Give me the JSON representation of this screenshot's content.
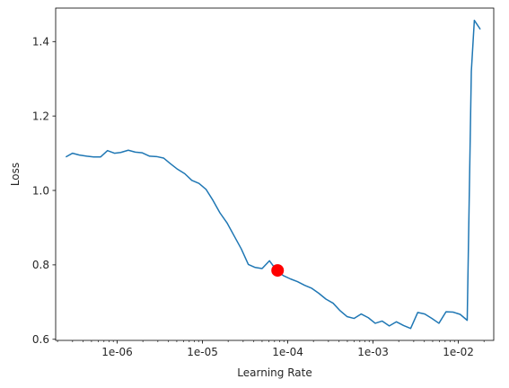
{
  "chart_data": {
    "type": "line",
    "title": "",
    "xlabel": "Learning Rate",
    "ylabel": "Loss",
    "xscale": "log",
    "xlim": [
      1.9e-07,
      0.026
    ],
    "ylim": [
      0.597,
      1.49
    ],
    "grid": false,
    "x_ticks": [
      1e-06,
      1e-05,
      0.0001,
      0.001,
      0.01
    ],
    "x_tick_labels": [
      "1e-06",
      "1e-05",
      "1e-04",
      "1e-03",
      "1e-02"
    ],
    "y_ticks": [
      0.6,
      0.8,
      1.0,
      1.2,
      1.4
    ],
    "y_tick_labels": [
      "0.6",
      "0.8",
      "1.0",
      "1.2",
      "1.4"
    ],
    "line_color": "#1f77b4",
    "marker_color": "#ff0000",
    "series": [
      {
        "x": [
          2.5e-07,
          3e-07,
          3.6e-07,
          4.4e-07,
          5.3e-07,
          6.4e-07,
          7.7e-07,
          9.3e-07,
          1.1e-06,
          1.35e-06,
          1.63e-06,
          1.97e-06,
          2.4e-06,
          2.9e-06,
          3.5e-06,
          4.2e-06,
          5.1e-06,
          6.2e-06,
          7.5e-06,
          9.1e-06,
          1.1e-05,
          1.33e-05,
          1.6e-05,
          1.95e-05,
          2.35e-05,
          2.85e-05,
          3.45e-05,
          4.15e-05,
          5e-05,
          6.1e-05,
          7.4e-05,
          8.9e-05,
          0.000108,
          0.00013,
          0.000158,
          0.000191,
          0.00023,
          0.00028,
          0.00034,
          0.00041,
          0.000495,
          0.0006,
          0.000725,
          0.00088,
          0.00106,
          0.00128,
          0.00155,
          0.00188,
          0.00228,
          0.00276,
          0.00334,
          0.00404,
          0.00489,
          0.00592,
          0.00717,
          0.00868,
          0.0105,
          0.0127,
          0.0142,
          0.0154,
          0.0181
        ],
        "y": [
          1.09,
          1.1,
          1.095,
          1.092,
          1.09,
          1.09,
          1.107,
          1.1,
          1.102,
          1.108,
          1.103,
          1.101,
          1.092,
          1.091,
          1.087,
          1.072,
          1.057,
          1.045,
          1.027,
          1.019,
          1.003,
          0.973,
          0.94,
          0.912,
          0.878,
          0.843,
          0.801,
          0.793,
          0.79,
          0.811,
          0.785,
          0.771,
          0.762,
          0.755,
          0.745,
          0.737,
          0.724,
          0.708,
          0.697,
          0.677,
          0.661,
          0.656,
          0.668,
          0.658,
          0.643,
          0.649,
          0.636,
          0.647,
          0.637,
          0.629,
          0.672,
          0.668,
          0.656,
          0.643,
          0.674,
          0.673,
          0.667,
          0.651,
          1.32,
          1.457,
          1.433
        ]
      }
    ],
    "suggested_point": {
      "x": 7.6e-05,
      "y": 0.785
    }
  }
}
